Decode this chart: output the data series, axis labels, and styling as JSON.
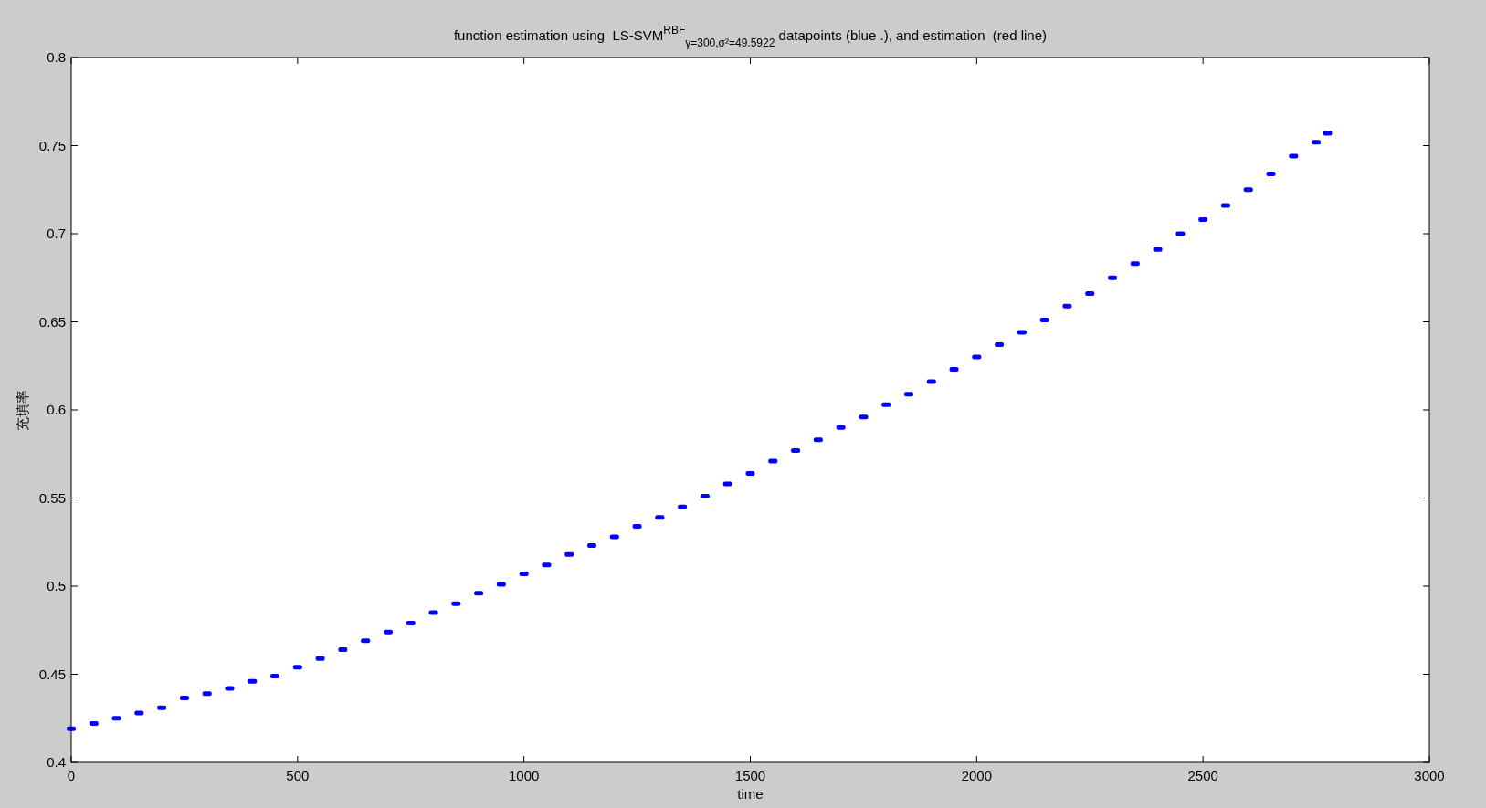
{
  "chart_data": {
    "type": "scatter",
    "title": "function estimation using  LS-SVM$^{RBF}$$_{γ=300,σ²=49.5922}$ datapoints (blue .), and estimation  (red line)",
    "xlabel": "time",
    "ylabel": "充填率",
    "xlim": [
      0,
      3000
    ],
    "ylim": [
      0.4,
      0.8
    ],
    "xticks": [
      0,
      500,
      1000,
      1500,
      2000,
      2500,
      3000
    ],
    "yticks": [
      0.4,
      0.45,
      0.5,
      0.55,
      0.6,
      0.65,
      0.7,
      0.75,
      0.8
    ],
    "marker": "square",
    "series": [
      {
        "color": "#0000ff",
        "x": [
          0,
          50,
          100,
          150,
          200,
          250,
          300,
          350,
          400,
          450,
          500,
          550,
          600,
          650,
          700,
          750,
          800,
          850,
          900,
          950,
          1000,
          1050,
          1100,
          1150,
          1200,
          1250,
          1300,
          1350,
          1400,
          1450,
          1500,
          1550,
          1600,
          1650,
          1700,
          1750,
          1800,
          1850,
          1900,
          1950,
          2000,
          2050,
          2100,
          2150,
          2200,
          2250,
          2300,
          2350,
          2400,
          2450,
          2500,
          2550,
          2600,
          2650,
          2700,
          2750,
          2775
        ],
        "values": [
          0.419,
          0.422,
          0.425,
          0.428,
          0.431,
          0.4365,
          0.439,
          0.442,
          0.446,
          0.449,
          0.454,
          0.459,
          0.464,
          0.469,
          0.474,
          0.479,
          0.485,
          0.49,
          0.496,
          0.501,
          0.507,
          0.512,
          0.518,
          0.523,
          0.528,
          0.534,
          0.539,
          0.545,
          0.551,
          0.558,
          0.564,
          0.571,
          0.577,
          0.583,
          0.59,
          0.596,
          0.603,
          0.609,
          0.616,
          0.623,
          0.63,
          0.637,
          0.644,
          0.651,
          0.659,
          0.666,
          0.675,
          0.683,
          0.691,
          0.7,
          0.708,
          0.716,
          0.725,
          0.734,
          0.744,
          0.752,
          0.757
        ]
      }
    ]
  }
}
